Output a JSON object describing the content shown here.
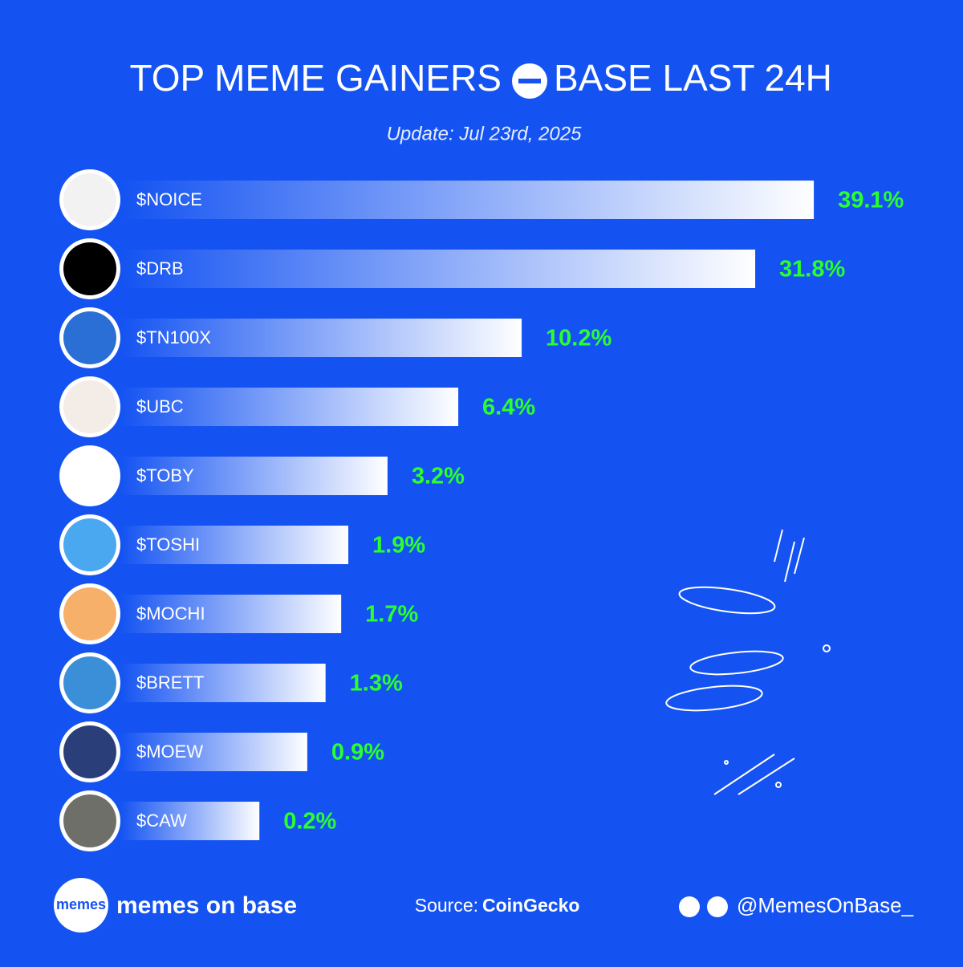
{
  "chart_data": {
    "type": "bar",
    "orientation": "horizontal",
    "title": "TOP MEME GAINERS",
    "title_suffix": "BASE LAST 24H",
    "subtitle": "Update: Jul 23rd, 2025",
    "categories": [
      "$NOICE",
      "$DRB",
      "$TN100X",
      "$UBC",
      "$TOBY",
      "$TOSHI",
      "$MOCHI",
      "$BRETT",
      "$MOEW",
      "$CAW"
    ],
    "values": [
      39.1,
      31.8,
      10.2,
      6.4,
      3.2,
      1.9,
      1.7,
      1.3,
      0.9,
      0.2
    ],
    "value_labels": [
      "39.1%",
      "31.8%",
      "10.2%",
      "6.4%",
      "3.2%",
      "1.9%",
      "1.7%",
      "1.3%",
      "0.9%",
      "0.2%"
    ],
    "color": "#ffffff",
    "label_color": "#2bff2b"
  },
  "footer": {
    "logo": "memes",
    "brand": "memes on base",
    "source_label": "Source:",
    "source": "CoinGecko",
    "handle": "@MemesOnBase_"
  }
}
